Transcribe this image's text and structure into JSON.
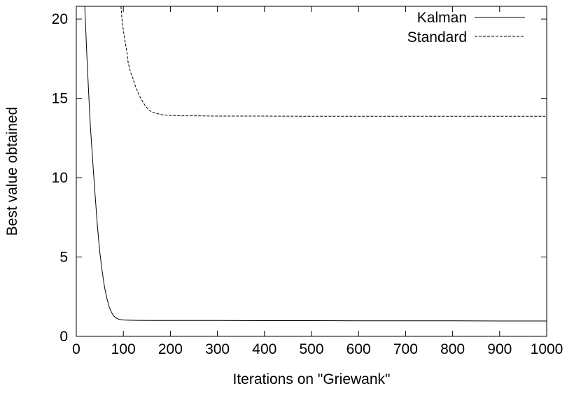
{
  "chart_data": {
    "type": "line",
    "title": "",
    "xlabel": "Iterations on \"Griewank\"",
    "ylabel": "Best value obtained",
    "xlim": [
      0,
      1000
    ],
    "ylim": [
      0,
      20.8
    ],
    "xticks": [
      0,
      100,
      200,
      300,
      400,
      500,
      600,
      700,
      800,
      900,
      1000
    ],
    "yticks": [
      0,
      5,
      10,
      15,
      20
    ],
    "grid": false,
    "legend_position": "top-right",
    "series": [
      {
        "name": "Kalman",
        "style": "solid",
        "x": [
          18,
          22,
          26,
          30,
          35,
          40,
          45,
          50,
          55,
          60,
          65,
          70,
          75,
          80,
          85,
          90,
          95,
          100,
          110,
          130,
          160,
          200,
          300,
          400,
          500,
          600,
          700,
          800,
          900,
          1000
        ],
        "y": [
          20.8,
          18.0,
          15.5,
          13.2,
          11.0,
          8.9,
          6.9,
          5.3,
          4.1,
          3.1,
          2.4,
          1.85,
          1.5,
          1.27,
          1.15,
          1.08,
          1.05,
          1.03,
          1.02,
          1.01,
          1.0,
          1.0,
          1.0,
          0.99,
          0.99,
          0.98,
          0.98,
          0.98,
          0.97,
          0.97
        ]
      },
      {
        "name": "Standard",
        "style": "dashed",
        "x": [
          95,
          97,
          100,
          103,
          106,
          108,
          110,
          113,
          116,
          120,
          124,
          128,
          132,
          136,
          140,
          145,
          150,
          155,
          160,
          170,
          180,
          190,
          200,
          220,
          250,
          300,
          400,
          500,
          600,
          700,
          800,
          900,
          1000
        ],
        "y": [
          20.8,
          20.0,
          19.3,
          18.7,
          18.2,
          17.8,
          17.3,
          16.9,
          16.6,
          16.3,
          15.9,
          15.6,
          15.3,
          15.05,
          14.85,
          14.6,
          14.4,
          14.25,
          14.15,
          14.05,
          13.98,
          13.94,
          13.92,
          13.9,
          13.9,
          13.88,
          13.88,
          13.87,
          13.87,
          13.87,
          13.87,
          13.87,
          13.87
        ]
      }
    ]
  }
}
